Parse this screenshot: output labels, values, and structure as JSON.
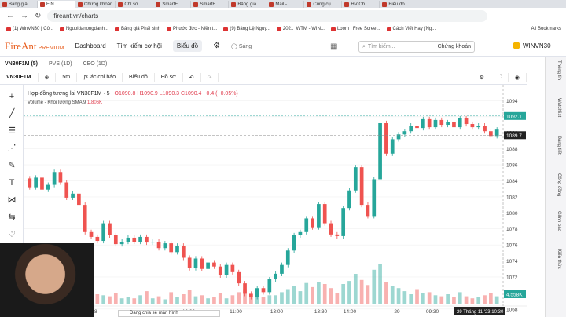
{
  "browser": {
    "tabs": [
      {
        "label": "Bảng giá",
        "active": false
      },
      {
        "label": "FIN",
        "active": true
      },
      {
        "label": "Chứng khoán",
        "active": false
      },
      {
        "label": "Chỉ số",
        "active": false
      },
      {
        "label": "SmartF",
        "active": false
      },
      {
        "label": "SmartF",
        "active": false
      },
      {
        "label": "Bảng giá",
        "active": false
      },
      {
        "label": "Mail -",
        "active": false
      },
      {
        "label": "Công cụ",
        "active": false
      },
      {
        "label": "HV Ch",
        "active": false
      },
      {
        "label": "Biểu đồ",
        "active": false
      }
    ],
    "url": "fireant.vn/charts",
    "bookmarks": [
      "(1) WinVN30 | Cô...",
      "Nguoidanongdanh...",
      "Bảng giá Phái sinh",
      "Phước đức - Niền t...",
      "(9) Bảng Lệ Nguy...",
      "2021_WTM - WIN...",
      "Loom | Free Scree...",
      "Cách Viết Hay (Ng..."
    ],
    "all_bookmarks": "All Bookmarks"
  },
  "app": {
    "logo": "FireAnt",
    "logo_premium": "PREMIUM",
    "nav": [
      "Dashboard",
      "Tìm kiếm cơ hội",
      "Biểu đồ"
    ],
    "theme_toggle": "Sáng",
    "search_placeholder": "Tìm kiếm...",
    "search_scope": "Chứng khoán",
    "user": "WINVN30"
  },
  "symbol_tabs": [
    {
      "label": "VN30F1M (5)",
      "active": true
    },
    {
      "label": "PVS (1D)",
      "active": false
    },
    {
      "label": "CEO (1D)",
      "active": false
    }
  ],
  "toolbar": {
    "symbol": "VN30F1M",
    "interval": "5m",
    "indicators": "Các chỉ báo",
    "chart_type": "Biểu đồ",
    "profile": "Hồ sơ"
  },
  "legend": {
    "title": "Hợp đồng tương lai VN30F1M · 5",
    "ohlc": "O1090.8 H1090.9 L1090.3 C1090.4 −0.4 (−0.05%)",
    "volume": "Volume - Khối lượng SMA 9",
    "volume_value": "1.806K"
  },
  "right_panel": [
    "Thông tin",
    "Watchlist",
    "Bảng tiết",
    "Công đồng",
    "Cảnh báo",
    "Kiến thức"
  ],
  "webcam_banner": "Đang chia sẻ màn hình",
  "chart_data": {
    "type": "candlestick",
    "y_ticks": [
      1094.0,
      1092.0,
      1090.0,
      1088.0,
      1086.0,
      1084.0,
      1082.0,
      1080.0,
      1078.0,
      1076.0,
      1074.0,
      1072.0,
      1070.0,
      1068.0
    ],
    "ylim": [
      1067.0,
      1096.0
    ],
    "x_ticks": [
      "28",
      "10:30",
      "11:00",
      "13:00",
      "13:30",
      "14:00",
      "29",
      "09:30",
      "10:30"
    ],
    "price_label": "1092.1",
    "current_price": "1089.7",
    "crosshair_time": "29 Tháng 11 '23   10:30",
    "volume_label": "4.558K",
    "candles": [
      [
        1084.3,
        1083.2
      ],
      [
        1083.2,
        1084.4
      ],
      [
        1084.4,
        1082.9
      ],
      [
        1082.9,
        1083.5
      ],
      [
        1083.5,
        1085.1
      ],
      [
        1085.1,
        1083.8
      ],
      [
        1083.8,
        1081.9
      ],
      [
        1081.9,
        1082.4
      ],
      [
        1082.4,
        1081.0
      ],
      [
        1081.0,
        1077.6
      ],
      [
        1077.6,
        1077.0
      ],
      [
        1077.0,
        1076.5
      ],
      [
        1076.5,
        1078.7
      ],
      [
        1078.7,
        1077.2
      ],
      [
        1077.2,
        1076.1
      ],
      [
        1076.1,
        1076.4
      ],
      [
        1076.4,
        1076.9
      ],
      [
        1076.9,
        1076.4
      ],
      [
        1076.4,
        1077.0
      ],
      [
        1077.0,
        1076.3
      ],
      [
        1076.3,
        1076.4
      ],
      [
        1076.4,
        1075.6
      ],
      [
        1075.6,
        1076.2
      ],
      [
        1076.2,
        1075.1
      ],
      [
        1075.1,
        1075.9
      ],
      [
        1075.9,
        1074.4
      ],
      [
        1074.4,
        1073.1
      ],
      [
        1073.1,
        1074.3
      ],
      [
        1074.3,
        1073.0
      ],
      [
        1073.0,
        1073.8
      ],
      [
        1073.8,
        1073.3
      ],
      [
        1073.3,
        1072.2
      ],
      [
        1072.2,
        1073.5
      ],
      [
        1073.5,
        1072.6
      ],
      [
        1072.6,
        1071.2
      ],
      [
        1071.2,
        1069.9
      ],
      [
        1069.9,
        1069.5
      ],
      [
        1069.5,
        1070.6
      ],
      [
        1070.6,
        1070.1
      ],
      [
        1070.1,
        1071.7
      ],
      [
        1071.7,
        1072.4
      ],
      [
        1072.4,
        1073.5
      ],
      [
        1073.5,
        1075.3
      ],
      [
        1075.3,
        1077.2
      ],
      [
        1077.2,
        1077.6
      ],
      [
        1077.6,
        1079.3
      ],
      [
        1079.3,
        1078.2
      ],
      [
        1078.2,
        1081.1
      ],
      [
        1081.1,
        1078.7
      ],
      [
        1078.7,
        1077.3
      ],
      [
        1077.3,
        1077.1
      ],
      [
        1077.1,
        1080.6
      ],
      [
        1080.6,
        1082.8
      ],
      [
        1082.8,
        1085.7
      ],
      [
        1085.7,
        1081.0
      ],
      [
        1081.0,
        1079.6
      ],
      [
        1079.6,
        1084.2
      ],
      [
        1084.2,
        1091.2
      ],
      [
        1091.2,
        1087.4
      ],
      [
        1087.4,
        1089.2
      ],
      [
        1089.2,
        1089.8
      ],
      [
        1089.8,
        1090.2
      ],
      [
        1090.2,
        1090.9
      ],
      [
        1090.9,
        1090.6
      ],
      [
        1090.6,
        1091.7
      ],
      [
        1091.7,
        1090.7
      ],
      [
        1090.7,
        1091.6
      ],
      [
        1091.6,
        1091.0
      ],
      [
        1091.0,
        1091.3
      ],
      [
        1091.3,
        1090.7
      ],
      [
        1090.7,
        1091.8
      ],
      [
        1091.8,
        1091.1
      ],
      [
        1091.1,
        1090.7
      ],
      [
        1090.7,
        1090.9
      ],
      [
        1090.9,
        1090.2
      ],
      [
        1090.2,
        1089.6
      ],
      [
        1089.6,
        1090.4
      ]
    ],
    "volumes": [
      0.8,
      0.6,
      0.9,
      0.5,
      1.2,
      0.7,
      0.6,
      0.9,
      0.8,
      2.4,
      1.4,
      1.0,
      0.9,
      0.8,
      1.1,
      0.6,
      0.7,
      0.6,
      0.9,
      1.3,
      0.6,
      0.8,
      0.5,
      1.2,
      0.7,
      1.0,
      1.4,
      0.8,
      0.9,
      0.6,
      0.7,
      1.1,
      0.6,
      0.9,
      1.2,
      1.5,
      1.0,
      0.8,
      0.7,
      0.9,
      0.9,
      1.2,
      1.5,
      1.8,
      1.3,
      2.1,
      1.7,
      2.2,
      2.0,
      1.6,
      1.1,
      2.0,
      2.3,
      3.0,
      2.4,
      1.9,
      3.4,
      4.0,
      2.2,
      1.8,
      1.6,
      1.3,
      1.0,
      1.5,
      1.1,
      1.2,
      0.9,
      0.8,
      1.0,
      0.7,
      1.2,
      0.8,
      0.6,
      0.7,
      0.9,
      1.1,
      0.8
    ]
  }
}
